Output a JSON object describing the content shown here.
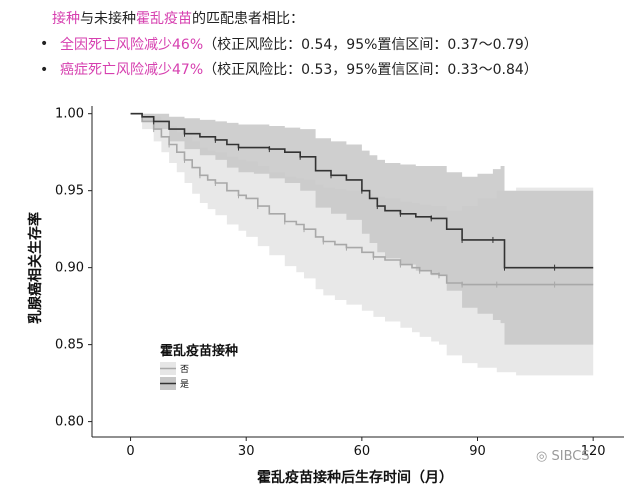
{
  "header": {
    "line1": {
      "part1": "接种",
      "part2": "与未接种",
      "part3": "霍乱疫苗",
      "part4": "的匹配患者相比："
    },
    "bullet1": {
      "highlight": "全因死亡风险减少46%",
      "rest": "（校正风险比：0.54，95%置信区间：0.37～0.79）"
    },
    "bullet2": {
      "highlight": "癌症死亡风险减少47%",
      "rest": "（校正风险比：0.53，95%置信区间：0.33～0.84）"
    }
  },
  "watermark": "SIBCS",
  "colors": {
    "accent": "#d63faf",
    "vaccinated": "#333333",
    "unvaccinated": "#a8a8a8",
    "band_vacc": "#c7c7c7",
    "band_unvacc": "#e6e6e6"
  },
  "chart_data": {
    "type": "line",
    "ylabel": "乳腺癌相关生存率",
    "xlabel": "霍乱疫苗接种后生存时间（月）",
    "xlim": [
      -10,
      128
    ],
    "ylim": [
      0.79,
      1.005
    ],
    "xticks": [
      0,
      30,
      60,
      90,
      120
    ],
    "yticks": [
      0.8,
      0.85,
      0.9,
      0.95,
      1.0
    ],
    "ytick_labels": [
      "0.80",
      "0.85",
      "0.90",
      "0.95",
      "1.00"
    ],
    "legend": {
      "title": "霍乱疫苗接种",
      "position": "inside-bottom-left"
    },
    "series": [
      {
        "name": "否",
        "x": [
          0,
          3,
          6,
          8,
          10,
          12,
          14,
          16,
          18,
          20,
          22,
          25,
          28,
          30,
          33,
          36,
          40,
          43,
          45,
          48,
          50,
          53,
          56,
          60,
          63,
          66,
          70,
          73,
          75,
          78,
          80,
          82,
          86,
          90,
          95,
          100,
          110,
          120
        ],
        "y": [
          1.0,
          0.995,
          0.99,
          0.985,
          0.98,
          0.975,
          0.97,
          0.965,
          0.96,
          0.957,
          0.955,
          0.95,
          0.947,
          0.945,
          0.94,
          0.935,
          0.93,
          0.928,
          0.925,
          0.92,
          0.917,
          0.915,
          0.913,
          0.91,
          0.907,
          0.905,
          0.902,
          0.9,
          0.898,
          0.896,
          0.895,
          0.89,
          0.889,
          0.889,
          0.889,
          0.889,
          0.889,
          0.889
        ],
        "lower": [
          1.0,
          0.99,
          0.982,
          0.975,
          0.968,
          0.962,
          0.955,
          0.948,
          0.942,
          0.938,
          0.934,
          0.928,
          0.924,
          0.92,
          0.914,
          0.908,
          0.901,
          0.897,
          0.893,
          0.886,
          0.882,
          0.879,
          0.876,
          0.872,
          0.868,
          0.865,
          0.861,
          0.858,
          0.855,
          0.852,
          0.85,
          0.843,
          0.838,
          0.835,
          0.832,
          0.83,
          0.83,
          0.83
        ],
        "upper": [
          1.0,
          1.0,
          0.998,
          0.995,
          0.992,
          0.988,
          0.985,
          0.982,
          0.978,
          0.976,
          0.975,
          0.972,
          0.97,
          0.969,
          0.966,
          0.962,
          0.959,
          0.958,
          0.957,
          0.954,
          0.952,
          0.951,
          0.95,
          0.948,
          0.946,
          0.945,
          0.943,
          0.942,
          0.941,
          0.94,
          0.94,
          0.937,
          0.94,
          0.945,
          0.95,
          0.952,
          0.952,
          0.952
        ]
      },
      {
        "name": "是",
        "x": [
          0,
          3,
          6,
          10,
          14,
          18,
          22,
          25,
          28,
          32,
          36,
          40,
          44,
          48,
          52,
          56,
          60,
          62,
          64,
          66,
          70,
          74,
          78,
          82,
          86,
          90,
          94,
          96,
          97,
          100,
          110,
          120
        ],
        "y": [
          1.0,
          0.998,
          0.995,
          0.99,
          0.987,
          0.985,
          0.983,
          0.98,
          0.978,
          0.978,
          0.977,
          0.975,
          0.972,
          0.963,
          0.96,
          0.957,
          0.95,
          0.945,
          0.94,
          0.937,
          0.935,
          0.933,
          0.932,
          0.925,
          0.918,
          0.918,
          0.918,
          0.918,
          0.9,
          0.9,
          0.9,
          0.9
        ],
        "lower": [
          1.0,
          0.995,
          0.99,
          0.982,
          0.977,
          0.973,
          0.97,
          0.965,
          0.962,
          0.961,
          0.958,
          0.955,
          0.95,
          0.939,
          0.935,
          0.931,
          0.922,
          0.916,
          0.91,
          0.906,
          0.902,
          0.898,
          0.895,
          0.885,
          0.874,
          0.87,
          0.866,
          0.864,
          0.85,
          0.85,
          0.85,
          0.85
        ],
        "upper": [
          1.0,
          1.0,
          1.0,
          0.998,
          0.997,
          0.996,
          0.995,
          0.994,
          0.993,
          0.993,
          0.992,
          0.991,
          0.99,
          0.984,
          0.982,
          0.98,
          0.976,
          0.973,
          0.97,
          0.968,
          0.967,
          0.966,
          0.966,
          0.962,
          0.959,
          0.961,
          0.964,
          0.966,
          0.95,
          0.95,
          0.95,
          0.95
        ]
      }
    ]
  }
}
